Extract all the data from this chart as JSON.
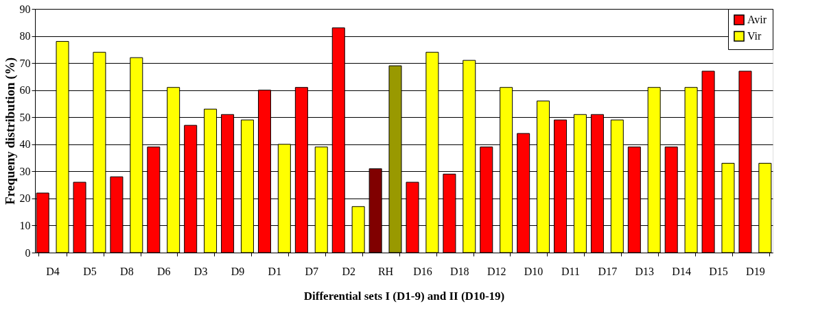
{
  "chart_data": {
    "type": "bar",
    "xlabel": "Differential sets I (D1-9) and II (D10-19)",
    "ylabel": "Frequeny distribution (%)",
    "categories": [
      "D4",
      "D5",
      "D8",
      "D6",
      "D3",
      "D9",
      "D1",
      "D7",
      "D2",
      "RH",
      "D16",
      "D18",
      "D12",
      "D10",
      "D11",
      "D17",
      "D13",
      "D14",
      "D15",
      "D19"
    ],
    "series": [
      {
        "name": "Avir",
        "color": "#ff0000",
        "colors": [
          "#ff0000",
          "#ff0000",
          "#ff0000",
          "#ff0000",
          "#ff0000",
          "#ff0000",
          "#ff0000",
          "#ff0000",
          "#ff0000",
          "#800000",
          "#ff0000",
          "#ff0000",
          "#ff0000",
          "#ff0000",
          "#ff0000",
          "#ff0000",
          "#ff0000",
          "#ff0000",
          "#ff0000",
          "#ff0000"
        ],
        "values": [
          22,
          26,
          28,
          39,
          47,
          51,
          60,
          61,
          83,
          31,
          26,
          29,
          39,
          44,
          49,
          51,
          39,
          39,
          67,
          67
        ]
      },
      {
        "name": "Vir",
        "color": "#ffff00",
        "colors": [
          "#ffff00",
          "#ffff00",
          "#ffff00",
          "#ffff00",
          "#ffff00",
          "#ffff00",
          "#ffff00",
          "#ffff00",
          "#ffff00",
          "#999900",
          "#ffff00",
          "#ffff00",
          "#ffff00",
          "#ffff00",
          "#ffff00",
          "#ffff00",
          "#ffff00",
          "#ffff00",
          "#ffff00",
          "#ffff00"
        ],
        "values": [
          78,
          74,
          72,
          61,
          53,
          49,
          40,
          39,
          17,
          69,
          74,
          71,
          61,
          56,
          51,
          49,
          61,
          61,
          33,
          33
        ]
      }
    ],
    "ylim": [
      0,
      90
    ],
    "yticks": [
      0,
      10,
      20,
      30,
      40,
      50,
      60,
      70,
      80,
      90
    ],
    "grid": "y",
    "legend": "top right"
  }
}
